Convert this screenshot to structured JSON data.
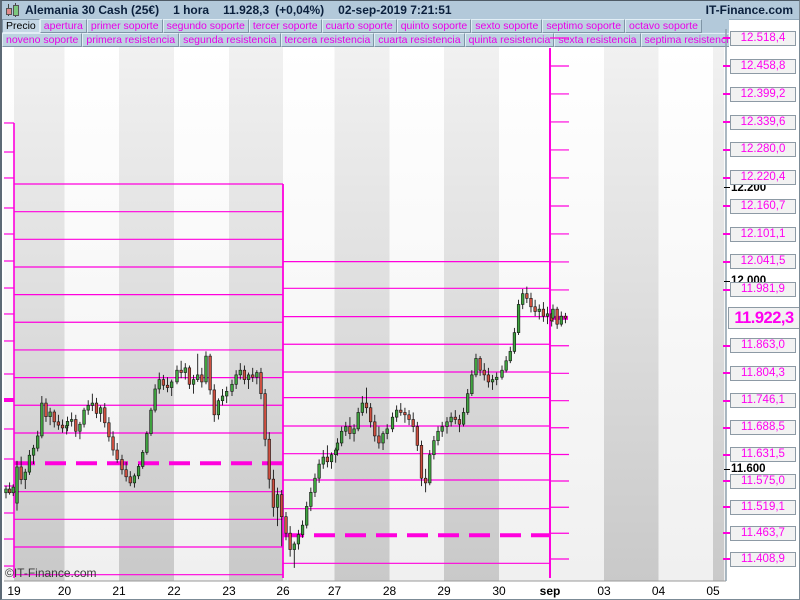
{
  "titlebar": {
    "instrument": "Alemania 30 Cash (25€)",
    "timeframe": "1 hora",
    "last_price": "11.928,3",
    "change": "(+0,04%)",
    "datetime": "02-sep-2019 7:21:51",
    "brand": "IT-Finance.com"
  },
  "toolbar": {
    "row1": [
      "Precio",
      "apertura",
      "primer soporte",
      "segundo soporte",
      "tercer soporte",
      "cuarto soporte",
      "quinto soporte",
      "sexto soporte",
      "septimo soporte",
      "octavo soporte"
    ],
    "row2": [
      "noveno soporte",
      "primera resistencia",
      "segunda resistencia",
      "tercera resistencia",
      "cuarta resistencia",
      "quinta resistencia",
      "sexta resistencia",
      "septima resistencia"
    ]
  },
  "watermark": "©IT-Finance.com",
  "colors": {
    "magenta_line": "#ff00dd",
    "magenta_text": "#ff00f0",
    "header_bg": "#b3c9da",
    "candle_up": "#3fa33f",
    "candle_down": "#cf5040",
    "band_gray_top": "#f1f1f1",
    "band_gray_bottom": "#c9c9c9"
  },
  "chart_data": {
    "type": "candlestick",
    "title": "Alemania 30 Cash (25€) 1 hora",
    "scale": {
      "price_at_plot_top": 12499.2,
      "price_at_plot_bottom": 11362.1
    },
    "y_axis": {
      "black_ticks": [
        {
          "label": "12.200",
          "price": 12200
        },
        {
          "label": "12.000",
          "price": 12000
        },
        {
          "label": "11.600",
          "price": 11600
        }
      ],
      "pivot_labels": [
        {
          "label": "12.518,4",
          "price": 12518.4
        },
        {
          "label": "12.458,8",
          "price": 12458.8
        },
        {
          "label": "12.399,2",
          "price": 12399.2
        },
        {
          "label": "12.339,6",
          "price": 12339.6
        },
        {
          "label": "12.280,0",
          "price": 12280.0
        },
        {
          "label": "12.220,4",
          "price": 12220.4
        },
        {
          "label": "12.160,7",
          "price": 12160.7
        },
        {
          "label": "12.101,1",
          "price": 12101.1
        },
        {
          "label": "12.041,5",
          "price": 12041.5
        },
        {
          "label": "11.981,9",
          "price": 11981.9
        },
        {
          "label": "11.863,0",
          "price": 11863.0
        },
        {
          "label": "11.804,3",
          "price": 11804.3
        },
        {
          "label": "11.746,1",
          "price": 11746.1
        },
        {
          "label": "11.688,5",
          "price": 11688.5
        },
        {
          "label": "11.631,5",
          "price": 11631.5
        },
        {
          "label": "11.575,0",
          "price": 11575.0
        },
        {
          "label": "11.519,1",
          "price": 11519.1
        },
        {
          "label": "11.463,7",
          "price": 11463.7
        },
        {
          "label": "11.408,9",
          "price": 11408.9
        }
      ],
      "current_price": {
        "label": "11.922,3",
        "price": 11922.3
      }
    },
    "x_axis": {
      "day_labels": [
        "19",
        "20",
        "21",
        "22",
        "23",
        "26",
        "27",
        "28",
        "29",
        "30",
        "sep",
        "03",
        "04",
        "05"
      ],
      "highlighted": "sep",
      "gray_band_indices": [
        0,
        2,
        4,
        6,
        8,
        11,
        13
      ]
    },
    "pivot_weeks": [
      {
        "name": "previous-week-stubs",
        "apertura_dashed": 11747.5,
        "levels": [
          12337.4,
          12275.6,
          12220.3,
          12156.4,
          12101.0,
          12043.5,
          11986.0,
          11930.7,
          11873.2,
          11802.9,
          11685.8,
          11621.9,
          11564.4,
          11506.9,
          11451.5,
          11394.0
        ]
      },
      {
        "name": "week-aug19-23",
        "apertura_dashed": 11612.8,
        "levels": [
          12207.5,
          12148.5,
          12089.7,
          12030.8,
          11971.9,
          11913.1,
          11854.1,
          11795.1,
          11736.3,
          11677.3,
          11552.3,
          11493.5,
          11434.5,
          11375.5
        ]
      },
      {
        "name": "week-aug26-30",
        "apertura_dashed": 11459.5,
        "levels": [
          12042.1,
          11985.4,
          11925.0,
          11866.2,
          11807.2,
          11752.5,
          11692.2,
          11633.2,
          11577.2,
          11516.1,
          11399.8
        ]
      },
      {
        "name": "week-sep02",
        "apertura_dashed": 11922.3,
        "levels": [
          12518.4,
          12458.8,
          12399.2,
          12339.6,
          12280.0,
          12220.4,
          12160.7,
          12101.1,
          12041.5,
          11981.9,
          11863.0,
          11804.3,
          11746.1,
          11688.5,
          11631.5,
          11575.0,
          11519.1,
          11463.7,
          11408.9
        ]
      }
    ],
    "pre_candles": [
      [
        11550,
        11565,
        11538,
        11558
      ],
      [
        11558,
        11572,
        11546,
        11550
      ],
      [
        11550,
        11568,
        11543,
        11562
      ]
    ],
    "days": [
      {
        "label": "19",
        "candles": [
          [
            11528,
            11618,
            11512,
            11605
          ],
          [
            11605,
            11627,
            11568,
            11578
          ],
          [
            11578,
            11601,
            11558,
            11594
          ],
          [
            11594,
            11641,
            11588,
            11630
          ],
          [
            11630,
            11652,
            11611,
            11645
          ],
          [
            11645,
            11682,
            11638,
            11671
          ],
          [
            11671,
            11756,
            11666,
            11741
          ],
          [
            11741,
            11751,
            11701,
            11712
          ],
          [
            11712,
            11731,
            11694,
            11722
          ],
          [
            11722,
            11727,
            11689,
            11701
          ],
          [
            11701,
            11716,
            11684,
            11694
          ],
          [
            11694,
            11706,
            11678,
            11688
          ],
          [
            11688,
            11701,
            11674,
            11693
          ]
        ]
      },
      {
        "label": "20",
        "candles": [
          [
            11693,
            11712,
            11681,
            11702
          ],
          [
            11702,
            11721,
            11691,
            11706
          ],
          [
            11706,
            11716,
            11669,
            11681
          ],
          [
            11681,
            11701,
            11664,
            11696
          ],
          [
            11696,
            11731,
            11689,
            11726
          ],
          [
            11726,
            11747,
            11716,
            11736
          ],
          [
            11736,
            11761,
            11724,
            11741
          ],
          [
            11741,
            11752,
            11709,
            11719
          ],
          [
            11719,
            11736,
            11701,
            11731
          ],
          [
            11731,
            11741,
            11689,
            11699
          ],
          [
            11699,
            11711,
            11659,
            11669
          ],
          [
            11669,
            11681,
            11629,
            11641
          ],
          [
            11641,
            11656,
            11614,
            11621
          ]
        ]
      },
      {
        "label": "21",
        "candles": [
          [
            11621,
            11631,
            11589,
            11599
          ],
          [
            11599,
            11616,
            11574,
            11584
          ],
          [
            11584,
            11596,
            11564,
            11571
          ],
          [
            11571,
            11591,
            11561,
            11586
          ],
          [
            11586,
            11611,
            11579,
            11606
          ],
          [
            11606,
            11641,
            11601,
            11636
          ],
          [
            11636,
            11681,
            11631,
            11676
          ],
          [
            11676,
            11731,
            11671,
            11726
          ],
          [
            11726,
            11781,
            11721,
            11771
          ],
          [
            11771,
            11806,
            11761,
            11791
          ],
          [
            11791,
            11801,
            11769,
            11779
          ],
          [
            11779,
            11796,
            11764,
            11774
          ],
          [
            11774,
            11791,
            11756,
            11786
          ]
        ]
      },
      {
        "label": "22",
        "candles": [
          [
            11786,
            11821,
            11781,
            11811
          ],
          [
            11811,
            11831,
            11794,
            11806
          ],
          [
            11806,
            11826,
            11791,
            11816
          ],
          [
            11816,
            11821,
            11771,
            11781
          ],
          [
            11781,
            11801,
            11761,
            11791
          ],
          [
            11791,
            11846,
            11786,
            11801
          ],
          [
            11801,
            11816,
            11774,
            11786
          ],
          [
            11786,
            11851,
            11781,
            11841
          ],
          [
            11841,
            11846,
            11759,
            11769
          ],
          [
            11769,
            11781,
            11701,
            11716
          ],
          [
            11716,
            11751,
            11706,
            11746
          ],
          [
            11746,
            11771,
            11736,
            11756
          ],
          [
            11756,
            11776,
            11741,
            11766
          ]
        ]
      },
      {
        "label": "23",
        "candles": [
          [
            11766,
            11791,
            11756,
            11781
          ],
          [
            11781,
            11811,
            11771,
            11801
          ],
          [
            11801,
            11826,
            11791,
            11811
          ],
          [
            11811,
            11821,
            11781,
            11791
          ],
          [
            11791,
            11806,
            11771,
            11801
          ],
          [
            11801,
            11816,
            11786,
            11796
          ],
          [
            11796,
            11811,
            11781,
            11806
          ],
          [
            11806,
            11816,
            11749,
            11761
          ],
          [
            11761,
            11771,
            11649,
            11664
          ],
          [
            11664,
            11679,
            11559,
            11579
          ],
          [
            11579,
            11599,
            11499,
            11519
          ],
          [
            11519,
            11561,
            11479,
            11546
          ],
          [
            11546,
            11556,
            11436,
            11499
          ]
        ]
      },
      {
        "label": "26",
        "candles": [
          [
            11499,
            11509,
            11449,
            11464
          ],
          [
            11464,
            11479,
            11414,
            11429
          ],
          [
            11429,
            11446,
            11390,
            11441
          ],
          [
            11441,
            11471,
            11429,
            11461
          ],
          [
            11461,
            11491,
            11454,
            11481
          ],
          [
            11481,
            11531,
            11474,
            11521
          ],
          [
            11521,
            11561,
            11511,
            11551
          ],
          [
            11551,
            11591,
            11541,
            11581
          ],
          [
            11581,
            11621,
            11571,
            11611
          ],
          [
            11611,
            11641,
            11601,
            11626
          ],
          [
            11626,
            11651,
            11604,
            11616
          ],
          [
            11616,
            11636,
            11601,
            11631
          ],
          [
            11631,
            11646,
            11614,
            11641
          ]
        ]
      },
      {
        "label": "27",
        "candles": [
          [
            11641,
            11666,
            11629,
            11656
          ],
          [
            11656,
            11691,
            11649,
            11681
          ],
          [
            11681,
            11701,
            11671,
            11691
          ],
          [
            11691,
            11711,
            11664,
            11676
          ],
          [
            11676,
            11696,
            11659,
            11686
          ],
          [
            11686,
            11731,
            11681,
            11721
          ],
          [
            11721,
            11756,
            11714,
            11741
          ],
          [
            11741,
            11774,
            11719,
            11731
          ],
          [
            11731,
            11741,
            11689,
            11701
          ],
          [
            11701,
            11716,
            11659,
            11671
          ],
          [
            11671,
            11691,
            11644,
            11656
          ],
          [
            11656,
            11681,
            11641,
            11676
          ],
          [
            11676,
            11696,
            11664,
            11686
          ]
        ]
      },
      {
        "label": "28",
        "candles": [
          [
            11686,
            11721,
            11679,
            11711
          ],
          [
            11711,
            11736,
            11701,
            11726
          ],
          [
            11726,
            11741,
            11714,
            11721
          ],
          [
            11721,
            11731,
            11699,
            11716
          ],
          [
            11716,
            11726,
            11694,
            11706
          ],
          [
            11706,
            11721,
            11679,
            11691
          ],
          [
            11691,
            11701,
            11639,
            11651
          ],
          [
            11651,
            11661,
            11564,
            11581
          ],
          [
            11581,
            11601,
            11551,
            11571
          ],
          [
            11571,
            11641,
            11566,
            11631
          ],
          [
            11631,
            11671,
            11621,
            11661
          ],
          [
            11661,
            11691,
            11651,
            11681
          ],
          [
            11681,
            11701,
            11669,
            11691
          ]
        ]
      },
      {
        "label": "29",
        "candles": [
          [
            11691,
            11711,
            11676,
            11701
          ],
          [
            11701,
            11721,
            11691,
            11711
          ],
          [
            11711,
            11726,
            11696,
            11706
          ],
          [
            11706,
            11716,
            11679,
            11696
          ],
          [
            11696,
            11731,
            11691,
            11721
          ],
          [
            11721,
            11771,
            11716,
            11761
          ],
          [
            11761,
            11811,
            11756,
            11801
          ],
          [
            11801,
            11846,
            11796,
            11836
          ],
          [
            11836,
            11841,
            11799,
            11811
          ],
          [
            11811,
            11826,
            11789,
            11801
          ],
          [
            11801,
            11816,
            11774,
            11786
          ],
          [
            11786,
            11801,
            11769,
            11791
          ],
          [
            11791,
            11806,
            11779,
            11796
          ]
        ]
      },
      {
        "label": "30",
        "candles": [
          [
            11796,
            11821,
            11791,
            11811
          ],
          [
            11811,
            11841,
            11806,
            11831
          ],
          [
            11831,
            11861,
            11826,
            11851
          ],
          [
            11851,
            11901,
            11846,
            11891
          ],
          [
            11891,
            11961,
            11886,
            11951
          ],
          [
            11951,
            11984,
            11941,
            11974
          ],
          [
            11974,
            11989,
            11954,
            11964
          ],
          [
            11964,
            11976,
            11934,
            11946
          ],
          [
            11946,
            11961,
            11926,
            11936
          ],
          [
            11936,
            11951,
            11919,
            11941
          ],
          [
            11941,
            11956,
            11914,
            11926
          ],
          [
            11926,
            11946,
            11909,
            11931
          ],
          [
            11931,
            11941,
            11904,
            11916
          ]
        ]
      },
      {
        "label": "sep",
        "candles": [
          [
            11922,
            11951,
            11914,
            11941
          ],
          [
            11941,
            11946,
            11899,
            11909
          ],
          [
            11909,
            11936,
            11904,
            11926
          ],
          [
            11926,
            11933,
            11911,
            11922
          ]
        ]
      }
    ]
  }
}
